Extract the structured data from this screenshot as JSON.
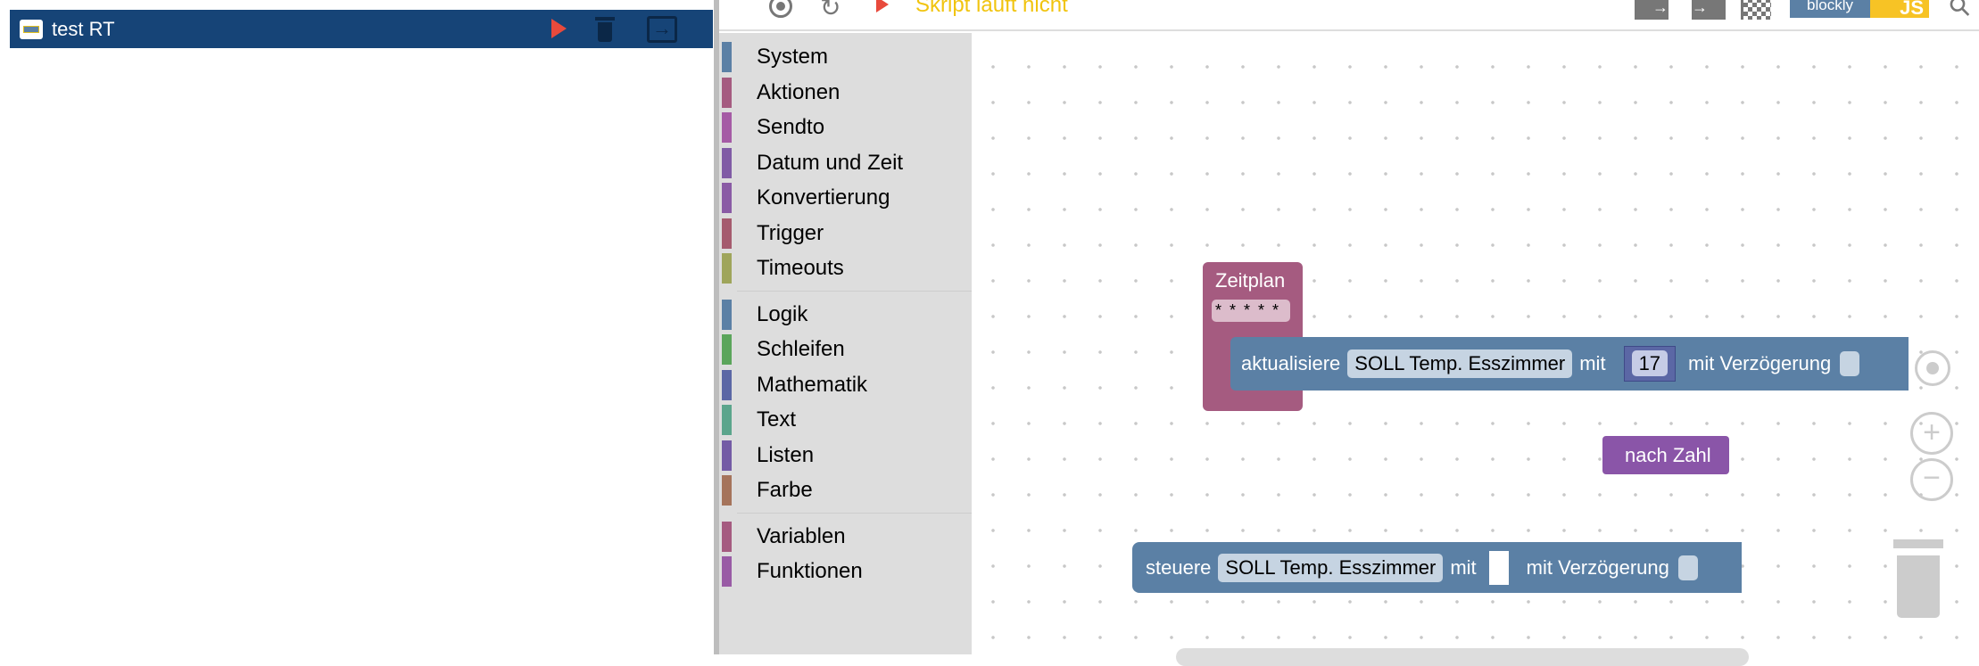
{
  "script_list": {
    "items": [
      {
        "name": "test RT",
        "icon": "blockly-icon",
        "selected": true
      }
    ]
  },
  "toolbar": {
    "status": "Skript läuft nicht",
    "status_color": "#f1c40f",
    "icons": [
      "target-icon",
      "refresh-icon",
      "play-icon",
      "export-icon",
      "import-icon",
      "checkered-flag-icon",
      "blockly-js-logo",
      "search-icon"
    ],
    "logo_text": {
      "blockly": "blockly",
      "js": "JS"
    }
  },
  "toolbox": {
    "groups": [
      [
        {
          "label": "System",
          "color": "#5b80a5"
        },
        {
          "label": "Aktionen",
          "color": "#a55b80"
        },
        {
          "label": "Sendto",
          "color": "#a55ba5"
        },
        {
          "label": "Datum und Zeit",
          "color": "#805ba5"
        },
        {
          "label": "Konvertierung",
          "color": "#8a5ba5"
        },
        {
          "label": "Trigger",
          "color": "#a55b6e"
        },
        {
          "label": "Timeouts",
          "color": "#9fa55b"
        }
      ],
      [
        {
          "label": "Logik",
          "color": "#5b80a5"
        },
        {
          "label": "Schleifen",
          "color": "#5ba55b"
        },
        {
          "label": "Mathematik",
          "color": "#5b67a5"
        },
        {
          "label": "Text",
          "color": "#5ba58c"
        },
        {
          "label": "Listen",
          "color": "#745ba5"
        },
        {
          "label": "Farbe",
          "color": "#a5745b"
        }
      ],
      [
        {
          "label": "Variablen",
          "color": "#a55b80"
        },
        {
          "label": "Funktionen",
          "color": "#995ba5"
        }
      ]
    ]
  },
  "workspace": {
    "schedule_block": {
      "title": "Zeitplan",
      "cron": "* * * * *",
      "color": "#a55b80"
    },
    "update_block": {
      "verb": "aktualisiere",
      "target": "SOLL Temp. Esszimmer",
      "with": "mit",
      "value": "17",
      "delay": "mit Verzögerung",
      "color": "#5b80a5"
    },
    "to_number_block": {
      "label": "nach Zahl",
      "color": "#8a55a8"
    },
    "control_block": {
      "verb": "steuere",
      "target": "SOLL Temp. Esszimmer",
      "with": "mit",
      "delay": "mit Verzögerung",
      "color": "#5b80a5"
    }
  }
}
